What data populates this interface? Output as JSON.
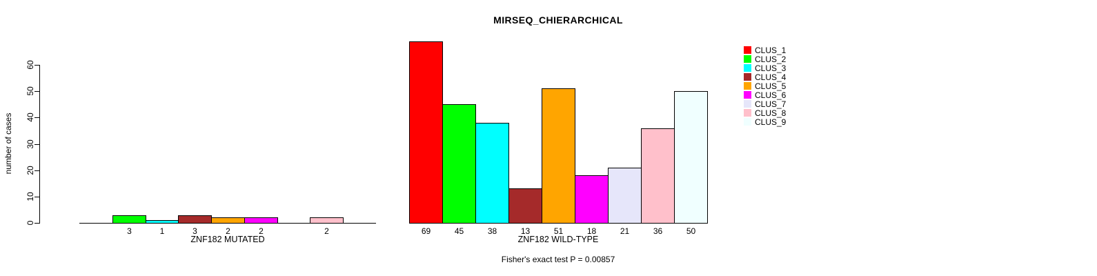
{
  "chart_data": {
    "type": "bar",
    "title": "MIRSEQ_CHIERARCHICAL",
    "ylabel": "number of cases",
    "yticks": [
      0,
      10,
      20,
      30,
      40,
      50,
      60
    ],
    "ylim": [
      0,
      69
    ],
    "grid": false,
    "legend_position": "right-outside",
    "annotation": "Fisher's exact test P = 0.00857",
    "clusters": [
      {
        "name": "CLUS_1",
        "color": "#FF0000"
      },
      {
        "name": "CLUS_2",
        "color": "#00FF00"
      },
      {
        "name": "CLUS_3",
        "color": "#00FFFF"
      },
      {
        "name": "CLUS_4",
        "color": "#A52A2A"
      },
      {
        "name": "CLUS_5",
        "color": "#FFA500"
      },
      {
        "name": "CLUS_6",
        "color": "#FF00FF"
      },
      {
        "name": "CLUS_7",
        "color": "#E6E6FA"
      },
      {
        "name": "CLUS_8",
        "color": "#FFC0CB"
      },
      {
        "name": "CLUS_9",
        "color": "#F0FFFF"
      }
    ],
    "panels": [
      {
        "xlabel": "ZNF182 MUTATED",
        "values": [
          0,
          3,
          1,
          3,
          2,
          2,
          0,
          2,
          0
        ]
      },
      {
        "xlabel": "ZNF182 WILD-TYPE",
        "values": [
          69,
          45,
          38,
          13,
          51,
          18,
          21,
          36,
          50
        ]
      }
    ]
  }
}
